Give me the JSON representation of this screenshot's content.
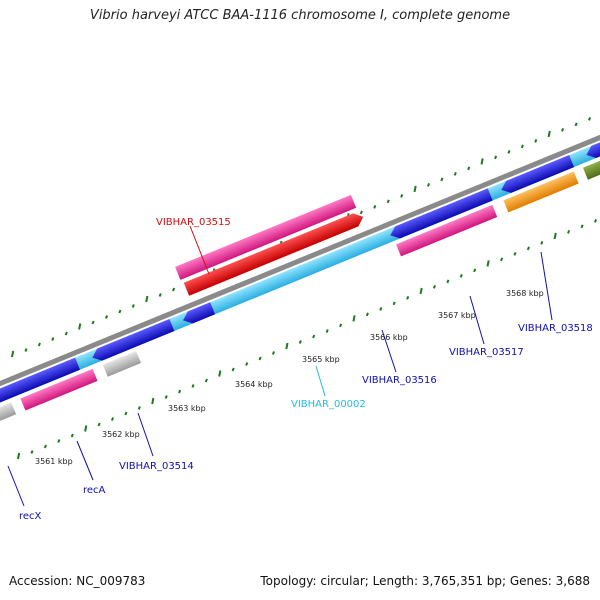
{
  "title": "Vibrio harveyi ATCC BAA-1116 chromosome I, complete genome",
  "footer": {
    "accession": "Accession: NC_009783",
    "summary": "Topology: circular; Length: 3,765,351 bp; Genes: 3,688"
  },
  "scale_labels": [
    "3561 kbp",
    "3562 kbp",
    "3563 kbp",
    "3564 kbp",
    "3565 kbp",
    "3566 kbp",
    "3567 kbp",
    "3568 kbp"
  ],
  "gene_labels": {
    "vibhar_03515": "VIBHAR_03515",
    "vibhar_00002": "VIBHAR_00002",
    "vibhar_03516": "VIBHAR_03516",
    "vibhar_03517": "VIBHAR_03517",
    "vibhar_03518": "VIBHAR_03518",
    "vibhar_03514": "VIBHAR_03514",
    "recA": "recA",
    "recX": "recX"
  },
  "colors": {
    "backbone": "#8a8a8a",
    "strand_blue": "#1a1ae0",
    "strand_cyan": "#44ccf5",
    "pink": "#ee2e9a",
    "red": "#ee1111",
    "orange": "#ff9a11",
    "olive": "#6b8c2a",
    "khaki": "#bdb77a",
    "gray": "#bcbcbc",
    "tick": "#1d7a1d",
    "label_red": "#cc1111",
    "label_blue": "#1010aa",
    "label_cyan": "#22bbe8"
  }
}
